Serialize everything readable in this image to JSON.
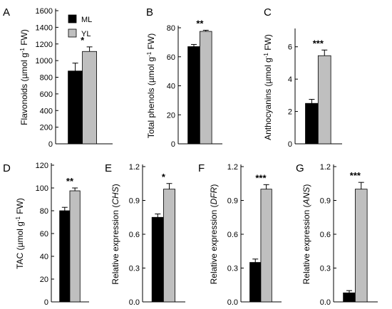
{
  "legend": {
    "ML": "ML",
    "YL": "YL"
  },
  "colors": {
    "ML": "#000000",
    "YL": "#bfbfbf",
    "axis": "#000000"
  },
  "chart_data": [
    {
      "type": "bar",
      "letter": "A",
      "ylabel": "Flavonoids (µmol g-1 FW)",
      "ylabel_parts": [
        [
          "Flavonoids (µmol g",
          ""
        ],
        [
          "-1",
          "sup"
        ],
        [
          " FW)",
          ""
        ]
      ],
      "categories": [
        "ML",
        "YL"
      ],
      "values": [
        875,
        1110
      ],
      "errors": [
        95,
        55
      ],
      "ylim": [
        0,
        1600
      ],
      "ticks": [
        0,
        200,
        400,
        600,
        800,
        1000,
        1200,
        1400,
        1600
      ],
      "significance": "*",
      "legend": true
    },
    {
      "type": "bar",
      "letter": "B",
      "ylabel": "Total phenols (µmol g-1 FW)",
      "ylabel_parts": [
        [
          "Total phenols (µmol g",
          ""
        ],
        [
          "-1",
          "sup"
        ],
        [
          " FW)",
          ""
        ]
      ],
      "categories": [
        "ML",
        "YL"
      ],
      "values": [
        67,
        77.5
      ],
      "errors": [
        1.5,
        0.8
      ],
      "ylim": [
        0,
        80
      ],
      "ticks": [
        0,
        20,
        40,
        60,
        80
      ],
      "significance": "**"
    },
    {
      "type": "bar",
      "letter": "C",
      "ylabel": "Anthocyanins (µmol g-1 FW)",
      "ylabel_parts": [
        [
          "Anthocyanins (µmol g",
          ""
        ],
        [
          "-1",
          "sup"
        ],
        [
          " FW)",
          ""
        ]
      ],
      "categories": [
        "ML",
        "YL"
      ],
      "values": [
        2.5,
        5.45
      ],
      "errors": [
        0.25,
        0.35
      ],
      "ylim": [
        0,
        7
      ],
      "ticks": [
        0,
        2,
        4,
        6
      ],
      "significance": "***"
    },
    {
      "type": "bar",
      "letter": "D",
      "ylabel": "TAC (µmol g-1 FW)",
      "ylabel_parts": [
        [
          "TAC (µmol g",
          ""
        ],
        [
          "-1",
          "sup"
        ],
        [
          " FW)",
          ""
        ]
      ],
      "categories": [
        "ML",
        "YL"
      ],
      "values": [
        80,
        97.5
      ],
      "errors": [
        3,
        2.5
      ],
      "ylim": [
        0,
        120
      ],
      "ticks": [
        0,
        20,
        40,
        60,
        80,
        100,
        120
      ],
      "significance": "**"
    },
    {
      "type": "bar",
      "letter": "E",
      "ylabel": "Relative expression (CHS)",
      "ylabel_parts": [
        [
          "Relative expression (",
          ""
        ],
        [
          "CHS",
          "it"
        ],
        [
          ")",
          ""
        ]
      ],
      "categories": [
        "ML",
        "YL"
      ],
      "values": [
        0.75,
        1.0
      ],
      "errors": [
        0.03,
        0.05
      ],
      "ylim": [
        0,
        1.2
      ],
      "ticks": [
        0.0,
        0.3,
        0.6,
        0.9,
        1.2
      ],
      "significance": "*"
    },
    {
      "type": "bar",
      "letter": "F",
      "ylabel": "Relative expression (DFR)",
      "ylabel_parts": [
        [
          "Relative expression (",
          ""
        ],
        [
          "DFR",
          "it"
        ],
        [
          ")",
          ""
        ]
      ],
      "categories": [
        "ML",
        "YL"
      ],
      "values": [
        0.35,
        1.0
      ],
      "errors": [
        0.03,
        0.04
      ],
      "ylim": [
        0,
        1.2
      ],
      "ticks": [
        0.0,
        0.3,
        0.6,
        0.9,
        1.2
      ],
      "significance": "***"
    },
    {
      "type": "bar",
      "letter": "G",
      "ylabel": "Relative expression (ANS)",
      "ylabel_parts": [
        [
          "Relative expression (",
          ""
        ],
        [
          "ANS",
          "it"
        ],
        [
          ")",
          ""
        ]
      ],
      "categories": [
        "ML",
        "YL"
      ],
      "values": [
        0.08,
        1.0
      ],
      "errors": [
        0.02,
        0.06
      ],
      "ylim": [
        0,
        1.2
      ],
      "ticks": [
        0.0,
        0.3,
        0.6,
        0.9,
        1.2
      ],
      "significance": "***"
    }
  ]
}
